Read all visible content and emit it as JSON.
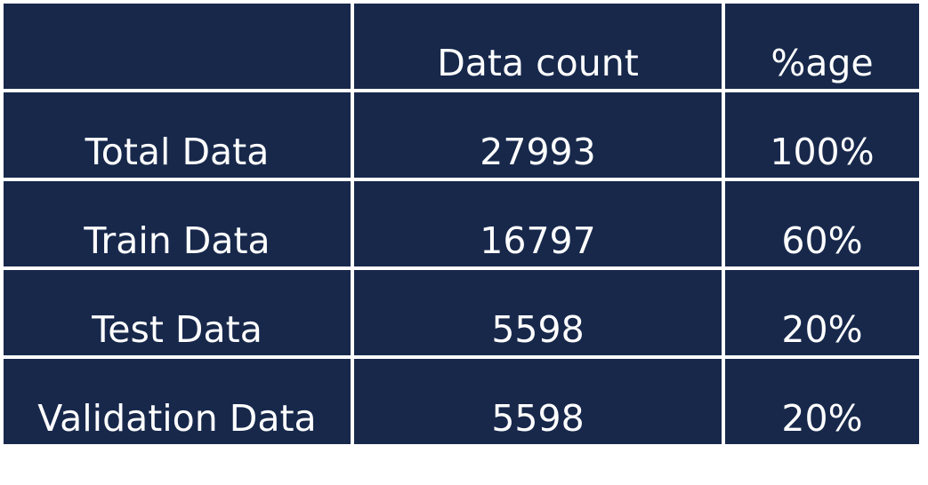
{
  "table": {
    "headers": [
      "",
      "Data count",
      "%age"
    ],
    "rows": [
      [
        "Total Data",
        "27993",
        "100%"
      ],
      [
        "Train Data",
        "16797",
        "60%"
      ],
      [
        "Test Data",
        "5598",
        "20%"
      ],
      [
        "Validation Data",
        "5598",
        "20%"
      ]
    ]
  },
  "colors": {
    "cell_background": "#17284b",
    "text": "#ffffff",
    "grid_lines": "#ffffff"
  }
}
